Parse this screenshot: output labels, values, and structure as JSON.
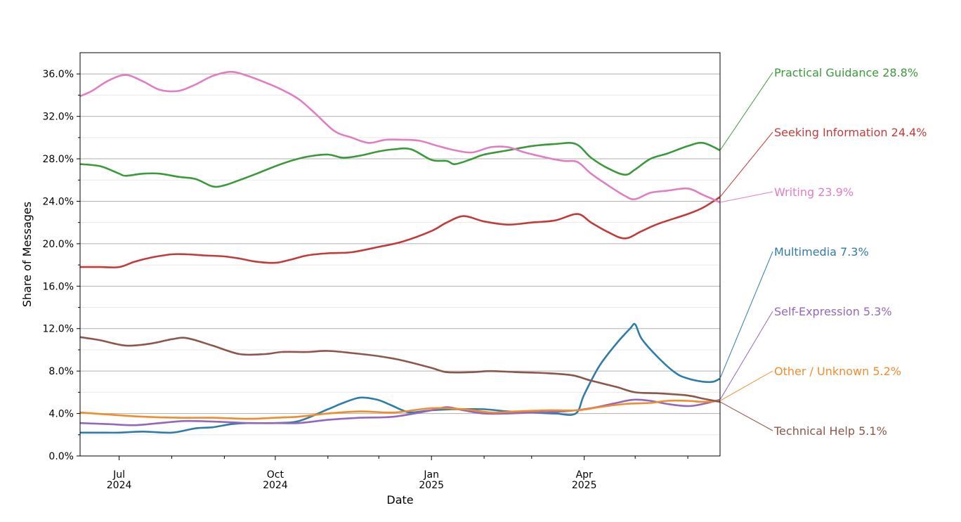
{
  "chart_data": {
    "type": "line",
    "xlabel": "Date",
    "ylabel": "Share of Messages",
    "xlim": [
      "2024-06-08",
      "2025-06-20"
    ],
    "ylim": [
      0,
      0.38
    ],
    "yticks": [
      0,
      0.04,
      0.08,
      0.12,
      0.16,
      0.2,
      0.24,
      0.28,
      0.32,
      0.36
    ],
    "ytick_labels": [
      "0.0%",
      "4.0%",
      "8.0%",
      "12.0%",
      "16.0%",
      "20.0%",
      "24.0%",
      "28.0%",
      "32.0%",
      "36.0%"
    ],
    "xticks": [
      {
        "date": "2024-07-01",
        "month": "Jul",
        "year": "2024"
      },
      {
        "date": "2024-10-01",
        "month": "Oct",
        "year": "2024"
      },
      {
        "date": "2025-01-01",
        "month": "Jan",
        "year": "2025"
      },
      {
        "date": "2025-04-01",
        "month": "Apr",
        "year": "2025"
      }
    ],
    "minor_xticks": [
      "2024-08-01",
      "2024-09-01",
      "2024-11-01",
      "2024-12-01",
      "2025-02-01",
      "2025-03-01",
      "2025-05-01",
      "2025-06-01"
    ],
    "grid": "horizontal",
    "legend": "inline-right",
    "series": [
      {
        "name": "Practical Guidance",
        "label": "Practical Guidance  28.8%",
        "color": "#3a9a3a",
        "points": [
          [
            "2024-06-08",
            0.275
          ],
          [
            "2024-06-20",
            0.273
          ],
          [
            "2024-07-01",
            0.266
          ],
          [
            "2024-07-05",
            0.264
          ],
          [
            "2024-07-15",
            0.266
          ],
          [
            "2024-07-25",
            0.266
          ],
          [
            "2024-08-05",
            0.263
          ],
          [
            "2024-08-15",
            0.261
          ],
          [
            "2024-08-25",
            0.254
          ],
          [
            "2024-09-01",
            0.255
          ],
          [
            "2024-09-10",
            0.26
          ],
          [
            "2024-09-20",
            0.266
          ],
          [
            "2024-10-01",
            0.273
          ],
          [
            "2024-10-10",
            0.278
          ],
          [
            "2024-10-20",
            0.282
          ],
          [
            "2024-11-01",
            0.284
          ],
          [
            "2024-11-10",
            0.281
          ],
          [
            "2024-11-20",
            0.283
          ],
          [
            "2024-12-01",
            0.287
          ],
          [
            "2024-12-10",
            0.289
          ],
          [
            "2024-12-20",
            0.289
          ],
          [
            "2025-01-01",
            0.279
          ],
          [
            "2025-01-10",
            0.278
          ],
          [
            "2025-01-15",
            0.275
          ],
          [
            "2025-01-25",
            0.28
          ],
          [
            "2025-02-01",
            0.284
          ],
          [
            "2025-02-15",
            0.288
          ],
          [
            "2025-03-01",
            0.292
          ],
          [
            "2025-03-15",
            0.294
          ],
          [
            "2025-03-27",
            0.294
          ],
          [
            "2025-04-05",
            0.281
          ],
          [
            "2025-04-15",
            0.271
          ],
          [
            "2025-04-25",
            0.265
          ],
          [
            "2025-05-01",
            0.27
          ],
          [
            "2025-05-10",
            0.28
          ],
          [
            "2025-05-20",
            0.285
          ],
          [
            "2025-06-01",
            0.292
          ],
          [
            "2025-06-10",
            0.295
          ],
          [
            "2025-06-20",
            0.288
          ]
        ]
      },
      {
        "name": "Seeking Information",
        "label": "Seeking Information  24.4%",
        "color": "#c23b3b",
        "points": [
          [
            "2024-06-08",
            0.178
          ],
          [
            "2024-06-20",
            0.178
          ],
          [
            "2024-07-01",
            0.178
          ],
          [
            "2024-07-10",
            0.183
          ],
          [
            "2024-07-20",
            0.187
          ],
          [
            "2024-08-01",
            0.19
          ],
          [
            "2024-08-10",
            0.19
          ],
          [
            "2024-08-20",
            0.189
          ],
          [
            "2024-09-01",
            0.188
          ],
          [
            "2024-09-10",
            0.186
          ],
          [
            "2024-09-20",
            0.183
          ],
          [
            "2024-10-01",
            0.182
          ],
          [
            "2024-10-10",
            0.185
          ],
          [
            "2024-10-20",
            0.189
          ],
          [
            "2024-11-01",
            0.191
          ],
          [
            "2024-11-15",
            0.192
          ],
          [
            "2024-12-01",
            0.197
          ],
          [
            "2024-12-15",
            0.202
          ],
          [
            "2025-01-01",
            0.212
          ],
          [
            "2025-01-10",
            0.22
          ],
          [
            "2025-01-20",
            0.226
          ],
          [
            "2025-02-01",
            0.221
          ],
          [
            "2025-02-15",
            0.218
          ],
          [
            "2025-03-01",
            0.22
          ],
          [
            "2025-03-15",
            0.222
          ],
          [
            "2025-03-28",
            0.228
          ],
          [
            "2025-04-05",
            0.22
          ],
          [
            "2025-04-15",
            0.211
          ],
          [
            "2025-04-25",
            0.205
          ],
          [
            "2025-05-05",
            0.212
          ],
          [
            "2025-05-15",
            0.219
          ],
          [
            "2025-06-01",
            0.228
          ],
          [
            "2025-06-10",
            0.234
          ],
          [
            "2025-06-20",
            0.244
          ]
        ]
      },
      {
        "name": "Writing",
        "label": "Writing  23.9%",
        "color": "#e07ec3",
        "points": [
          [
            "2024-06-08",
            0.339
          ],
          [
            "2024-06-15",
            0.344
          ],
          [
            "2024-06-25",
            0.354
          ],
          [
            "2024-07-05",
            0.359
          ],
          [
            "2024-07-15",
            0.353
          ],
          [
            "2024-07-25",
            0.345
          ],
          [
            "2024-08-05",
            0.344
          ],
          [
            "2024-08-15",
            0.35
          ],
          [
            "2024-08-25",
            0.358
          ],
          [
            "2024-09-05",
            0.362
          ],
          [
            "2024-09-15",
            0.358
          ],
          [
            "2024-09-25",
            0.352
          ],
          [
            "2024-10-05",
            0.345
          ],
          [
            "2024-10-15",
            0.336
          ],
          [
            "2024-10-25",
            0.322
          ],
          [
            "2024-11-05",
            0.306
          ],
          [
            "2024-11-15",
            0.3
          ],
          [
            "2024-11-25",
            0.295
          ],
          [
            "2024-12-05",
            0.298
          ],
          [
            "2024-12-15",
            0.298
          ],
          [
            "2024-12-25",
            0.297
          ],
          [
            "2025-01-05",
            0.292
          ],
          [
            "2025-01-15",
            0.288
          ],
          [
            "2025-01-25",
            0.286
          ],
          [
            "2025-02-05",
            0.291
          ],
          [
            "2025-02-15",
            0.291
          ],
          [
            "2025-02-25",
            0.286
          ],
          [
            "2025-03-10",
            0.281
          ],
          [
            "2025-03-20",
            0.278
          ],
          [
            "2025-03-28",
            0.277
          ],
          [
            "2025-04-05",
            0.266
          ],
          [
            "2025-04-15",
            0.255
          ],
          [
            "2025-04-25",
            0.245
          ],
          [
            "2025-05-01",
            0.242
          ],
          [
            "2025-05-10",
            0.248
          ],
          [
            "2025-05-20",
            0.25
          ],
          [
            "2025-06-01",
            0.252
          ],
          [
            "2025-06-10",
            0.246
          ],
          [
            "2025-06-20",
            0.239
          ]
        ]
      },
      {
        "name": "Multimedia",
        "label": "Multimedia  7.3%",
        "color": "#2e7ca8",
        "points": [
          [
            "2024-06-08",
            0.022
          ],
          [
            "2024-06-20",
            0.022
          ],
          [
            "2024-07-01",
            0.022
          ],
          [
            "2024-07-15",
            0.023
          ],
          [
            "2024-08-01",
            0.022
          ],
          [
            "2024-08-15",
            0.026
          ],
          [
            "2024-08-25",
            0.027
          ],
          [
            "2024-09-05",
            0.03
          ],
          [
            "2024-09-15",
            0.031
          ],
          [
            "2024-10-01",
            0.031
          ],
          [
            "2024-10-15",
            0.033
          ],
          [
            "2024-11-01",
            0.044
          ],
          [
            "2024-11-10",
            0.05
          ],
          [
            "2024-11-20",
            0.055
          ],
          [
            "2024-11-30",
            0.053
          ],
          [
            "2024-12-08",
            0.048
          ],
          [
            "2024-12-15",
            0.043
          ],
          [
            "2024-12-20",
            0.041
          ],
          [
            "2025-01-01",
            0.043
          ],
          [
            "2025-01-15",
            0.044
          ],
          [
            "2025-02-01",
            0.044
          ],
          [
            "2025-02-15",
            0.042
          ],
          [
            "2025-03-01",
            0.041
          ],
          [
            "2025-03-15",
            0.04
          ],
          [
            "2025-03-27",
            0.04
          ],
          [
            "2025-04-01",
            0.058
          ],
          [
            "2025-04-10",
            0.085
          ],
          [
            "2025-04-20",
            0.106
          ],
          [
            "2025-04-28",
            0.12
          ],
          [
            "2025-05-01",
            0.124
          ],
          [
            "2025-05-05",
            0.11
          ],
          [
            "2025-05-15",
            0.092
          ],
          [
            "2025-05-25",
            0.078
          ],
          [
            "2025-06-01",
            0.073
          ],
          [
            "2025-06-10",
            0.07
          ],
          [
            "2025-06-16",
            0.07
          ],
          [
            "2025-06-20",
            0.073
          ]
        ]
      },
      {
        "name": "Self-Expression",
        "label": "Self-Expression  5.3%",
        "color": "#9467bd",
        "points": [
          [
            "2024-06-08",
            0.031
          ],
          [
            "2024-06-25",
            0.03
          ],
          [
            "2024-07-10",
            0.029
          ],
          [
            "2024-07-25",
            0.031
          ],
          [
            "2024-08-10",
            0.033
          ],
          [
            "2024-09-01",
            0.032
          ],
          [
            "2024-09-15",
            0.031
          ],
          [
            "2024-10-01",
            0.031
          ],
          [
            "2024-10-15",
            0.031
          ],
          [
            "2024-11-01",
            0.034
          ],
          [
            "2024-11-20",
            0.036
          ],
          [
            "2024-12-10",
            0.037
          ],
          [
            "2025-01-01",
            0.043
          ],
          [
            "2025-01-10",
            0.046
          ],
          [
            "2025-01-20",
            0.043
          ],
          [
            "2025-02-01",
            0.04
          ],
          [
            "2025-02-15",
            0.04
          ],
          [
            "2025-03-01",
            0.041
          ],
          [
            "2025-03-20",
            0.042
          ],
          [
            "2025-04-05",
            0.045
          ],
          [
            "2025-04-20",
            0.05
          ],
          [
            "2025-04-30",
            0.053
          ],
          [
            "2025-05-10",
            0.052
          ],
          [
            "2025-05-20",
            0.049
          ],
          [
            "2025-06-01",
            0.047
          ],
          [
            "2025-06-10",
            0.049
          ],
          [
            "2025-06-20",
            0.053
          ]
        ]
      },
      {
        "name": "Other / Unknown",
        "label": "Other / Unknown  5.2%",
        "color": "#f08c2c",
        "points": [
          [
            "2024-06-08",
            0.041
          ],
          [
            "2024-06-25",
            0.039
          ],
          [
            "2024-07-15",
            0.037
          ],
          [
            "2024-08-05",
            0.036
          ],
          [
            "2024-08-25",
            0.036
          ],
          [
            "2024-09-15",
            0.035
          ],
          [
            "2024-10-01",
            0.036
          ],
          [
            "2024-10-15",
            0.037
          ],
          [
            "2024-11-01",
            0.04
          ],
          [
            "2024-11-20",
            0.042
          ],
          [
            "2024-12-10",
            0.041
          ],
          [
            "2025-01-01",
            0.045
          ],
          [
            "2025-01-20",
            0.044
          ],
          [
            "2025-02-05",
            0.041
          ],
          [
            "2025-02-20",
            0.042
          ],
          [
            "2025-03-10",
            0.043
          ],
          [
            "2025-03-28",
            0.043
          ],
          [
            "2025-04-10",
            0.046
          ],
          [
            "2025-04-25",
            0.049
          ],
          [
            "2025-05-10",
            0.05
          ],
          [
            "2025-05-20",
            0.052
          ],
          [
            "2025-06-01",
            0.052
          ],
          [
            "2025-06-10",
            0.051
          ],
          [
            "2025-06-20",
            0.052
          ]
        ]
      },
      {
        "name": "Technical Help",
        "label": "Technical Help  5.1%",
        "color": "#8c564b",
        "points": [
          [
            "2024-06-08",
            0.112
          ],
          [
            "2024-06-20",
            0.109
          ],
          [
            "2024-07-05",
            0.104
          ],
          [
            "2024-07-20",
            0.106
          ],
          [
            "2024-08-01",
            0.11
          ],
          [
            "2024-08-10",
            0.111
          ],
          [
            "2024-08-25",
            0.104
          ],
          [
            "2024-09-10",
            0.096
          ],
          [
            "2024-09-25",
            0.096
          ],
          [
            "2024-10-05",
            0.098
          ],
          [
            "2024-10-20",
            0.098
          ],
          [
            "2024-11-01",
            0.099
          ],
          [
            "2024-11-15",
            0.097
          ],
          [
            "2024-12-01",
            0.094
          ],
          [
            "2024-12-15",
            0.09
          ],
          [
            "2025-01-01",
            0.083
          ],
          [
            "2025-01-10",
            0.079
          ],
          [
            "2025-01-25",
            0.079
          ],
          [
            "2025-02-05",
            0.08
          ],
          [
            "2025-02-20",
            0.079
          ],
          [
            "2025-03-10",
            0.078
          ],
          [
            "2025-03-25",
            0.076
          ],
          [
            "2025-04-05",
            0.071
          ],
          [
            "2025-04-20",
            0.065
          ],
          [
            "2025-05-01",
            0.06
          ],
          [
            "2025-05-15",
            0.059
          ],
          [
            "2025-06-01",
            0.057
          ],
          [
            "2025-06-10",
            0.054
          ],
          [
            "2025-06-20",
            0.051
          ]
        ]
      }
    ]
  }
}
